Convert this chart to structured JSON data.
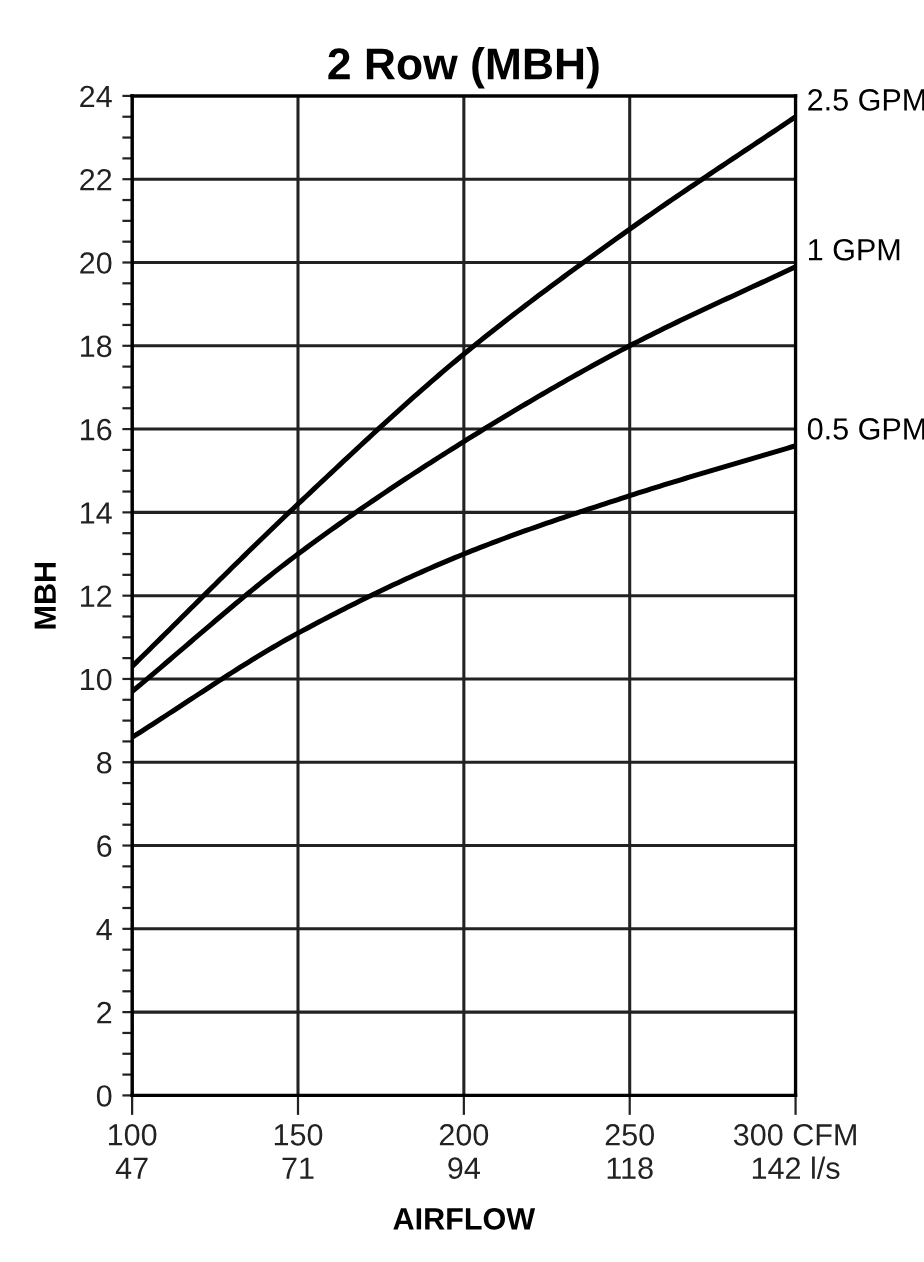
{
  "chart_data": {
    "type": "line",
    "title": "2 Row (MBH)",
    "xlabel": "AIRFLOW",
    "ylabel": "MBH",
    "x": [
      100,
      150,
      200,
      250,
      300
    ],
    "series": [
      {
        "name": "2.5 GPM",
        "color": "#000000",
        "values": [
          10.3,
          14.2,
          17.8,
          20.8,
          23.5
        ]
      },
      {
        "name": "1 GPM",
        "color": "#000000",
        "values": [
          9.7,
          13.0,
          15.7,
          18.0,
          19.9
        ]
      },
      {
        "name": "0.5 GPM",
        "color": "#000000",
        "values": [
          8.6,
          11.1,
          13.0,
          14.4,
          15.6
        ]
      }
    ],
    "xlim": [
      100,
      300
    ],
    "xticks": [
      100,
      150,
      200,
      250,
      {
        "value": 300,
        "label": "300 CFM"
      }
    ],
    "x2lim": [
      47.2,
      141.6
    ],
    "x2ticks": [
      {
        "value": 47.2,
        "label": "47"
      },
      {
        "value": 70.8,
        "label": "71"
      },
      {
        "value": 94.4,
        "label": "94"
      },
      {
        "value": 118,
        "label": "118"
      },
      {
        "value": 141.6,
        "label": "142 l/s"
      }
    ],
    "ylim": [
      0,
      24
    ],
    "yticks": [
      0,
      {
        "value": 0.5,
        "label": null
      },
      {
        "value": 1,
        "label": null
      },
      {
        "value": 1.5,
        "label": null
      },
      2,
      {
        "value": 2.5,
        "label": null
      },
      {
        "value": 3,
        "label": null
      },
      {
        "value": 3.5,
        "label": null
      },
      4,
      {
        "value": 4.5,
        "label": null
      },
      {
        "value": 5,
        "label": null
      },
      {
        "value": 5.5,
        "label": null
      },
      6,
      {
        "value": 6.5,
        "label": null
      },
      {
        "value": 7,
        "label": null
      },
      {
        "value": 7.5,
        "label": null
      },
      8,
      {
        "value": 8.5,
        "label": null
      },
      {
        "value": 9,
        "label": null
      },
      {
        "value": 9.5,
        "label": null
      },
      10,
      {
        "value": 10.5,
        "label": null
      },
      {
        "value": 11,
        "label": null
      },
      {
        "value": 11.5,
        "label": null
      },
      12,
      {
        "value": 12.5,
        "label": null
      },
      {
        "value": 13,
        "label": null
      },
      {
        "value": 13.5,
        "label": null
      },
      14,
      {
        "value": 14.5,
        "label": null
      },
      {
        "value": 15,
        "label": null
      },
      {
        "value": 15.5,
        "label": null
      },
      16,
      {
        "value": 16.5,
        "label": null
      },
      {
        "value": 17,
        "label": null
      },
      {
        "value": 17.5,
        "label": null
      },
      18,
      {
        "value": 18.5,
        "label": null
      },
      {
        "value": 19,
        "label": null
      },
      {
        "value": 19.5,
        "label": null
      },
      20,
      {
        "value": 20.5,
        "label": null
      },
      {
        "value": 21,
        "label": null
      },
      {
        "value": 21.5,
        "label": null
      },
      22,
      {
        "value": 22.5,
        "label": null
      },
      {
        "value": 23,
        "label": null
      },
      {
        "value": 23.5,
        "label": null
      },
      24
    ],
    "grid": true,
    "legend": false,
    "marker": "none",
    "line_style": "solid"
  }
}
